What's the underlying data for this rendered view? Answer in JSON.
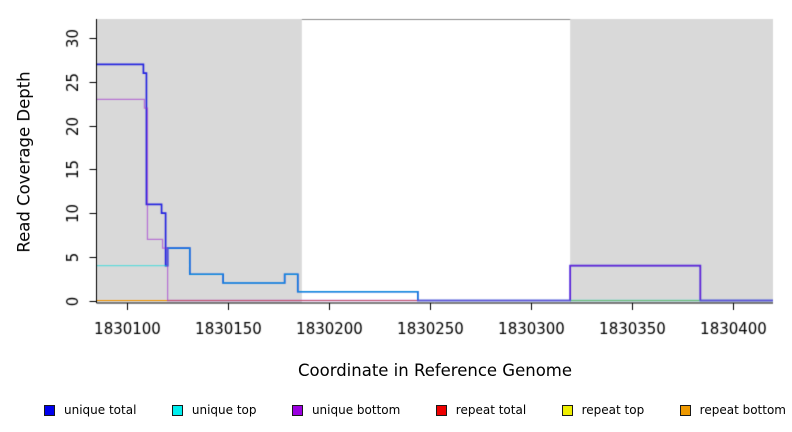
{
  "chart_data": {
    "type": "line",
    "subtype": "step-coverage",
    "title": "",
    "xlabel": "Coordinate in Reference Genome",
    "ylabel": "Read Coverage Depth",
    "xlim": [
      1830085,
      1830420
    ],
    "ylim": [
      0,
      32.2
    ],
    "x_ticks": [
      1830100,
      1830150,
      1830200,
      1830250,
      1830300,
      1830350,
      1830400
    ],
    "y_ticks": [
      0,
      5,
      10,
      15,
      20,
      25,
      30
    ],
    "grid": false,
    "plot_background": "#ffffff",
    "shaded_region_color": "#d9d9d9",
    "shaded_regions": [
      {
        "x0": 1830085,
        "x1": 1830186.5
      },
      {
        "x0": 1830319.5,
        "x1": 1830420
      }
    ],
    "series": [
      {
        "name": "repeat total",
        "color": "#e60000",
        "alpha": 1,
        "width": 1.1,
        "points": [
          [
            1830085,
            0
          ],
          [
            1830420,
            0
          ]
        ]
      },
      {
        "name": "repeat top",
        "color": "#e6e600",
        "alpha": 1,
        "width": 1.1,
        "points": [
          [
            1830085,
            0
          ],
          [
            1830420,
            0
          ]
        ]
      },
      {
        "name": "repeat bottom",
        "color": "#ee9100",
        "alpha": 1,
        "width": 1.2,
        "points": [
          [
            1830085,
            0
          ],
          [
            1830420,
            0
          ]
        ]
      },
      {
        "name": "unique total",
        "color": "#2424e0",
        "alpha": 1,
        "width": 1.7,
        "points": [
          [
            1830085,
            27
          ],
          [
            1830108,
            26
          ],
          [
            1830109.5,
            11
          ],
          [
            1830117,
            10
          ],
          [
            1830119,
            4
          ],
          [
            1830120,
            6
          ],
          [
            1830131,
            3
          ],
          [
            1830147.5,
            2
          ],
          [
            1830178,
            3
          ],
          [
            1830184.5,
            1
          ],
          [
            1830244,
            0
          ],
          [
            1830319.5,
            4
          ],
          [
            1830384,
            0
          ],
          [
            1830420,
            0
          ]
        ]
      },
      {
        "name": "unique top",
        "color": "#00dcdc",
        "alpha": 0.55,
        "width": 1.3,
        "points": [
          [
            1830085,
            4
          ],
          [
            1830120,
            6
          ],
          [
            1830131,
            3
          ],
          [
            1830147.5,
            2
          ],
          [
            1830178,
            3
          ],
          [
            1830184.5,
            1
          ],
          [
            1830244,
            0
          ],
          [
            1830420,
            0
          ]
        ]
      },
      {
        "name": "unique bottom",
        "color": "#9b22d0",
        "alpha": 0.55,
        "width": 1.3,
        "points": [
          [
            1830085,
            23
          ],
          [
            1830108.5,
            22
          ],
          [
            1830110,
            7
          ],
          [
            1830117.5,
            6
          ],
          [
            1830120,
            0
          ],
          [
            1830319.5,
            4
          ],
          [
            1830384,
            0
          ],
          [
            1830420,
            0
          ]
        ]
      }
    ],
    "legend": {
      "position": "bottom",
      "entries": [
        {
          "label": "unique total",
          "color": "#0000ee"
        },
        {
          "label": "unique top",
          "color": "#00eeee"
        },
        {
          "label": "unique bottom",
          "color": "#9b00e0"
        },
        {
          "label": "repeat total",
          "color": "#ee0000"
        },
        {
          "label": "repeat top",
          "color": "#eeee00"
        },
        {
          "label": "repeat bottom",
          "color": "#ee9900"
        }
      ]
    }
  }
}
